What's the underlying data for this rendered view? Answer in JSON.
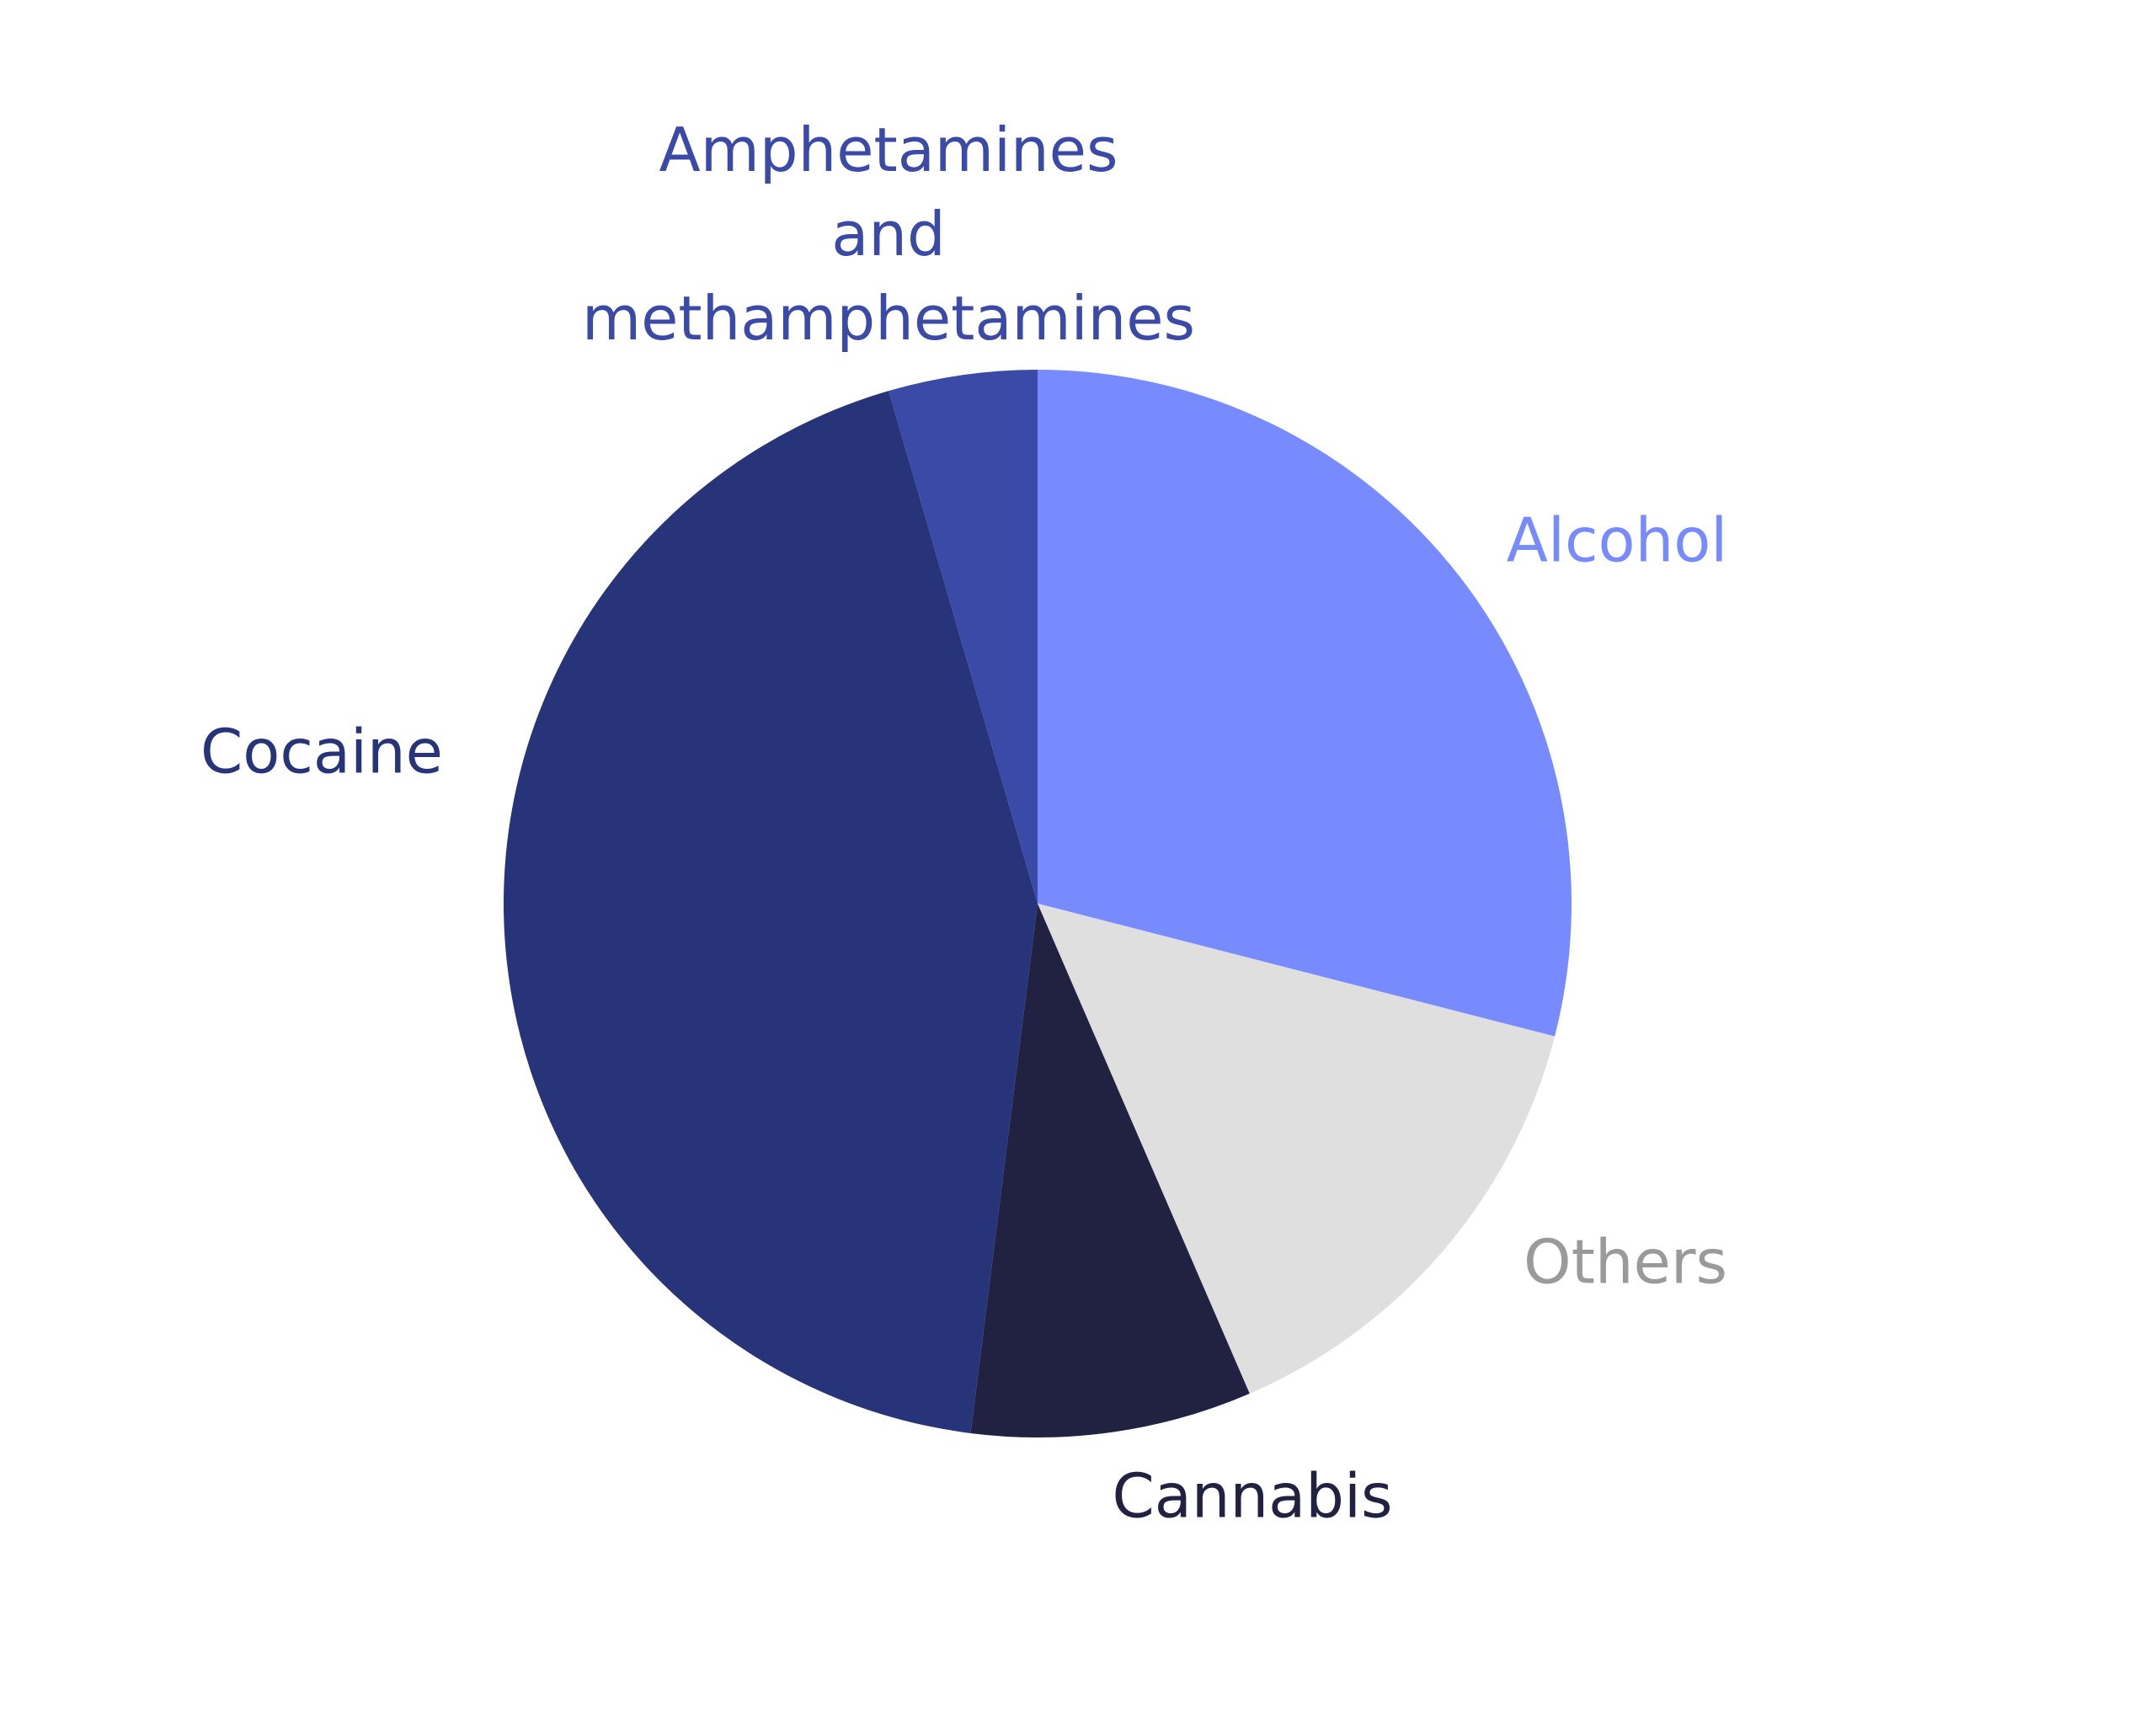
{
  "chart_data": {
    "type": "pie",
    "categories": [
      "Alcohol",
      "Others",
      "Cannabis",
      "Cocaine",
      "Amphetamines and methamphetamines"
    ],
    "values": [
      29,
      14.5,
      8.5,
      43.5,
      4.5
    ],
    "colors": [
      "#778bff",
      "#dfdfdf",
      "#212142",
      "#283479",
      "#3a4aa6"
    ],
    "label_colors": [
      "#778bff",
      "#9a9a9a",
      "#212142",
      "#283479",
      "#3a4aa6"
    ]
  }
}
